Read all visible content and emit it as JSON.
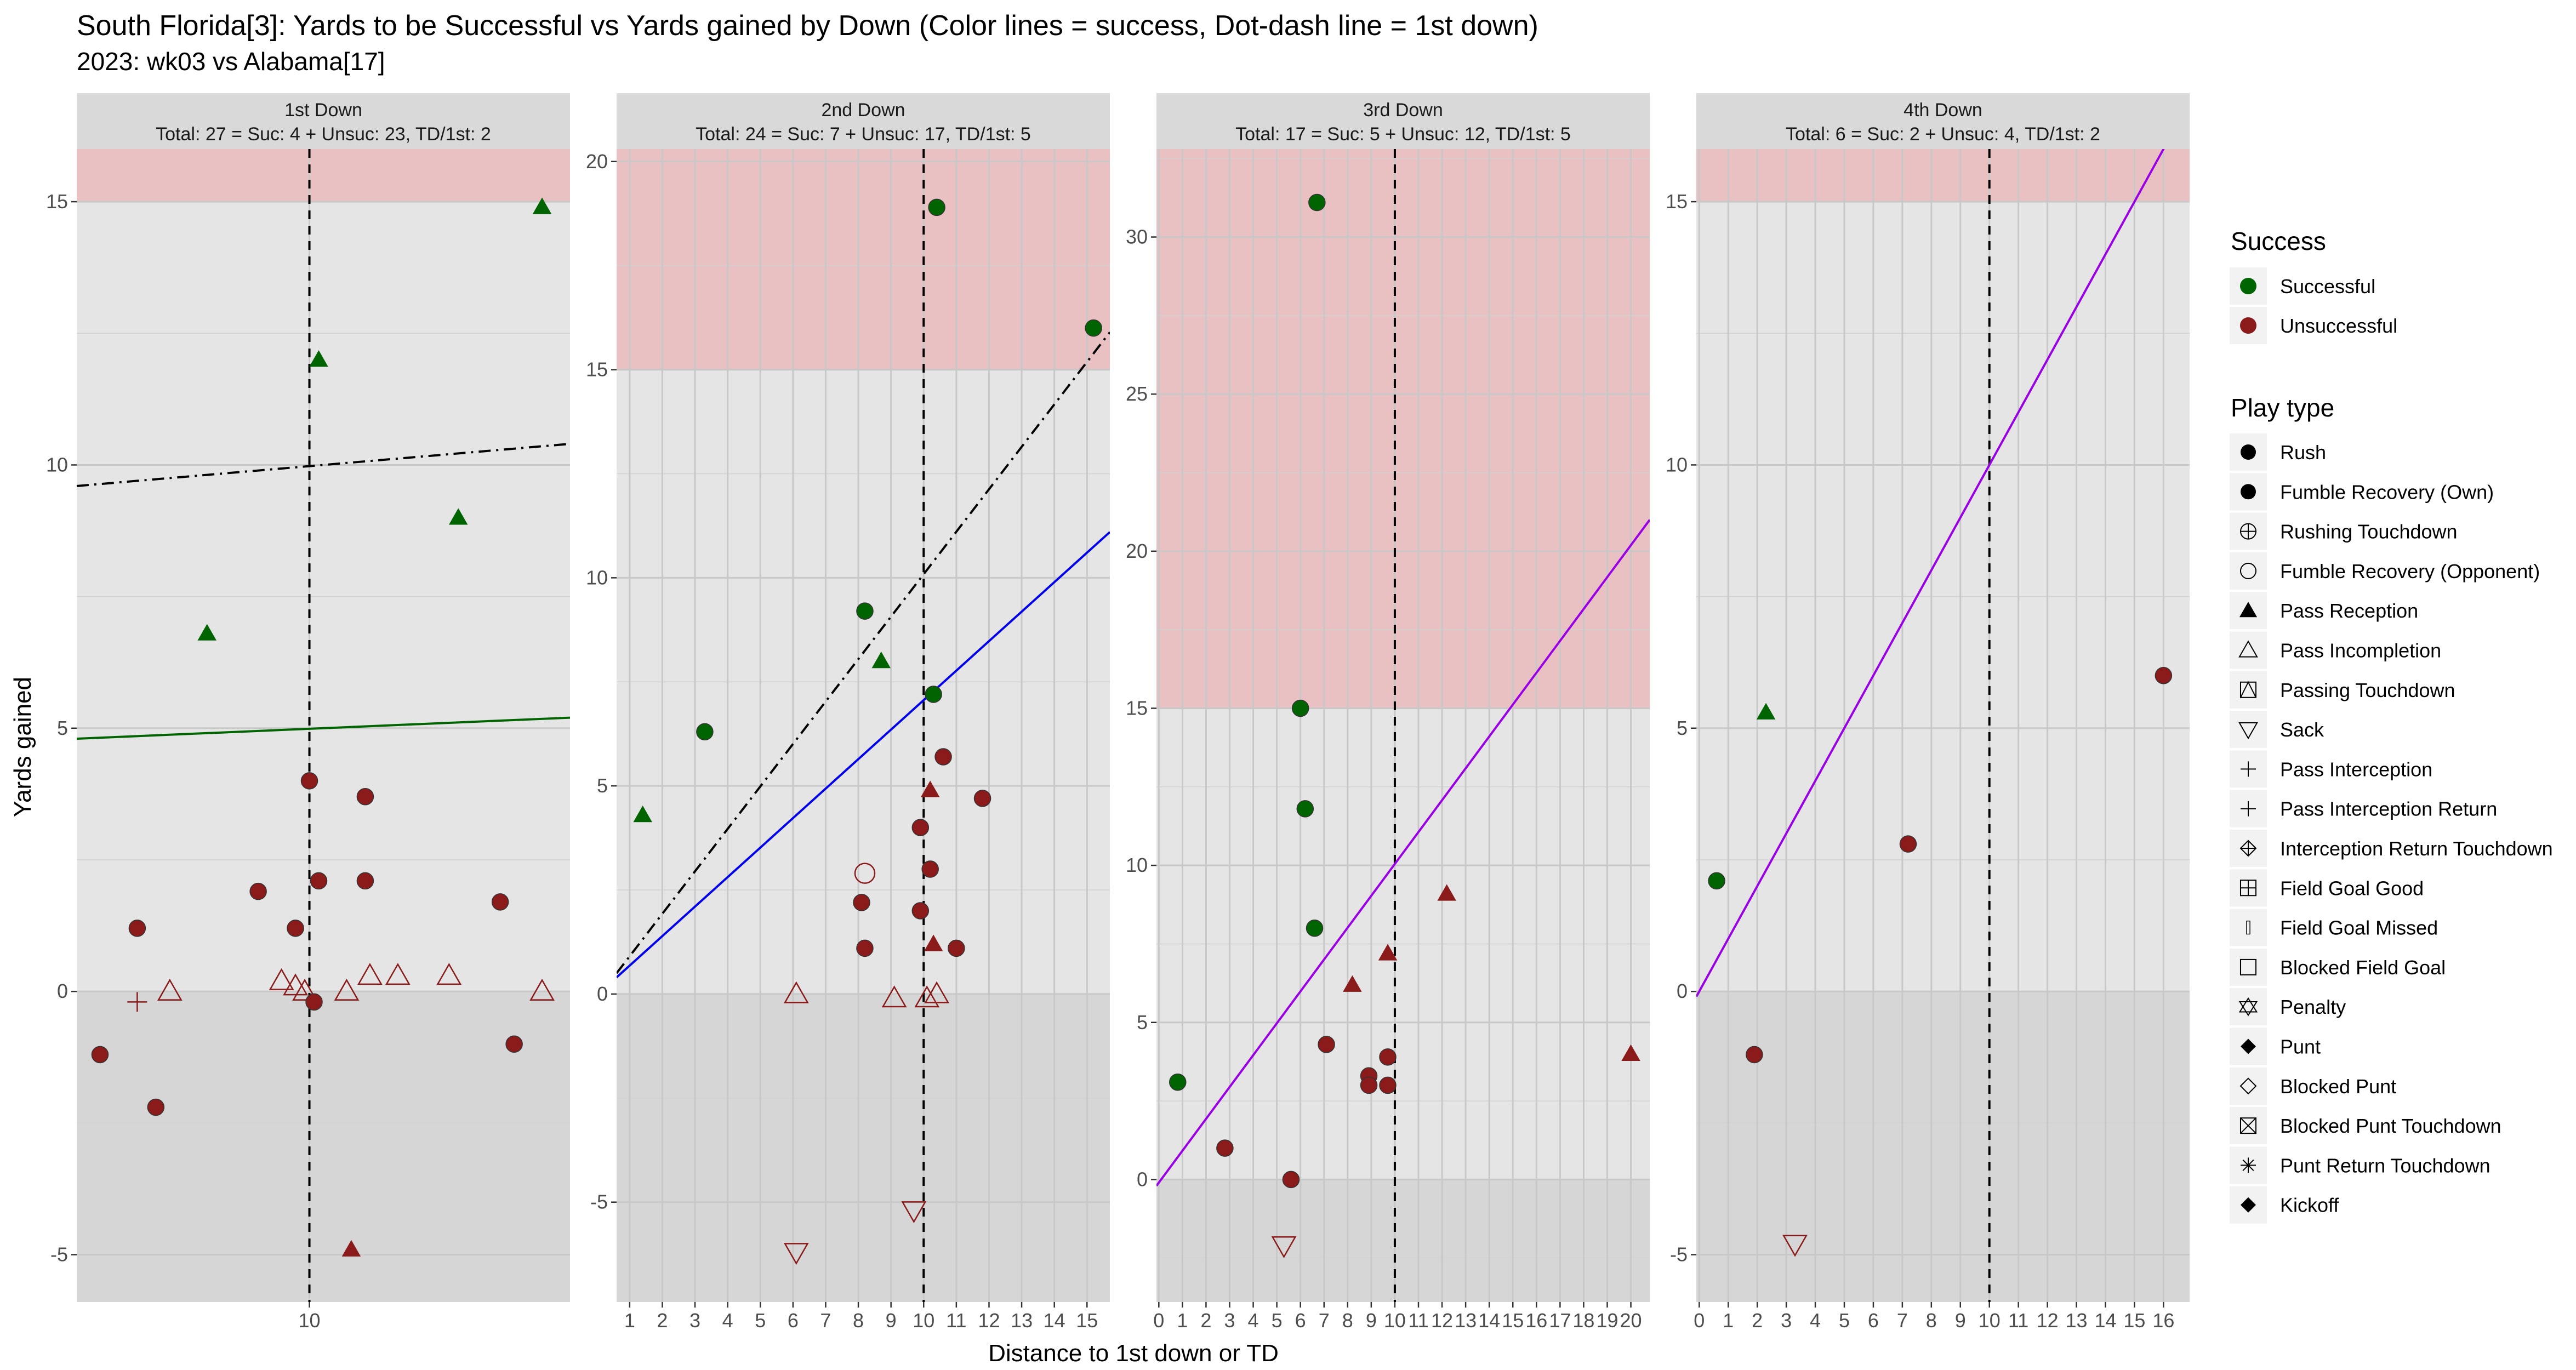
{
  "title": "South Florida[3]: Yards to be Successful vs Yards gained by Down  (Color lines = success, Dot-dash line = 1st down)",
  "subtitle": "2023: wk03 vs Alabama[17]",
  "xlabel": "Distance to 1st down or TD",
  "ylabel": "Yards gained",
  "colors": {
    "successful": "#006400",
    "unsuccessful": "#8B1A1A",
    "panel_bg": "#E5E5E5",
    "negative_band": "#D6D6D6",
    "big_play_band": "#E9C1C3",
    "strip_bg": "#D9D9D9",
    "grid": "#FFFFFF"
  },
  "legend": {
    "success_title": "Success",
    "success_items": [
      {
        "label": "Successful",
        "color": "#006400"
      },
      {
        "label": "Unsuccessful",
        "color": "#8B1A1A"
      }
    ],
    "play_title": "Play type",
    "play_items": [
      {
        "label": "Rush",
        "shape": "circle-filled"
      },
      {
        "label": "Fumble Recovery (Own)",
        "shape": "circle-filled"
      },
      {
        "label": "Rushing Touchdown",
        "shape": "circle-plus"
      },
      {
        "label": "Fumble Recovery (Opponent)",
        "shape": "circle-open"
      },
      {
        "label": "Pass Reception",
        "shape": "triangle-filled"
      },
      {
        "label": "Pass Incompletion",
        "shape": "triangle-open"
      },
      {
        "label": "Passing Touchdown",
        "shape": "square-triangle"
      },
      {
        "label": "Sack",
        "shape": "triangle-down-open"
      },
      {
        "label": "Pass Interception",
        "shape": "plus"
      },
      {
        "label": "Pass Interception Return",
        "shape": "plus"
      },
      {
        "label": "Interception Return Touchdown",
        "shape": "diamond-plus"
      },
      {
        "label": "Field Goal Good",
        "shape": "square-plus"
      },
      {
        "label": "Field Goal Missed",
        "shape": "bar-open"
      },
      {
        "label": "Blocked Field Goal",
        "shape": "square-open"
      },
      {
        "label": "Penalty",
        "shape": "star-triangles"
      },
      {
        "label": "Punt",
        "shape": "diamond-filled"
      },
      {
        "label": "Blocked Punt",
        "shape": "diamond-open"
      },
      {
        "label": "Blocked Punt Touchdown",
        "shape": "square-x"
      },
      {
        "label": "Punt Return Touchdown",
        "shape": "asterisk"
      },
      {
        "label": "Kickoff",
        "shape": "diamond-filled"
      }
    ]
  },
  "chart_data": [
    {
      "type": "scatter",
      "strip_title": "1st Down",
      "strip_subtitle": "Total: 27 = Suc: 4 + Unsuc: 23, TD/1st: 2",
      "xlim": [
        5,
        15.6
      ],
      "ylim": [
        -5.9,
        16
      ],
      "x_ticks": [
        10
      ],
      "y_ticks": [
        -5,
        0,
        5,
        10,
        15
      ],
      "big_play_threshold": 15,
      "first_down_line_x": 10,
      "success_line": {
        "color": "#006400",
        "from": [
          5,
          4.8
        ],
        "to": [
          15.6,
          5.2
        ]
      },
      "dotdash_line": {
        "from": [
          5,
          9.6
        ],
        "to": [
          15.6,
          10.4
        ]
      },
      "points": [
        {
          "x": 5.5,
          "y": -1.2,
          "play": "Rush",
          "success": false
        },
        {
          "x": 6.3,
          "y": 1.2,
          "play": "Rush",
          "success": false
        },
        {
          "x": 6.3,
          "y": -0.2,
          "play": "Pass Interception",
          "success": false
        },
        {
          "x": 6.7,
          "y": -2.2,
          "play": "Rush",
          "success": false
        },
        {
          "x": 7.0,
          "y": 0.0,
          "play": "Pass Incompletion",
          "success": false
        },
        {
          "x": 7.8,
          "y": 6.8,
          "play": "Pass Reception",
          "success": true
        },
        {
          "x": 8.9,
          "y": 1.9,
          "play": "Rush",
          "success": false
        },
        {
          "x": 9.4,
          "y": 0.2,
          "play": "Pass Incompletion",
          "success": false
        },
        {
          "x": 9.7,
          "y": 1.2,
          "play": "Rush",
          "success": false
        },
        {
          "x": 9.7,
          "y": 0.1,
          "play": "Pass Incompletion",
          "success": false
        },
        {
          "x": 9.9,
          "y": 0.0,
          "play": "Pass Incompletion",
          "success": false
        },
        {
          "x": 10.0,
          "y": 4.0,
          "play": "Rush",
          "success": false
        },
        {
          "x": 10.1,
          "y": -0.2,
          "play": "Rush",
          "success": false
        },
        {
          "x": 10.2,
          "y": 2.1,
          "play": "Rush",
          "success": false
        },
        {
          "x": 10.2,
          "y": 12.0,
          "play": "Pass Reception",
          "success": true
        },
        {
          "x": 10.8,
          "y": 0.0,
          "play": "Pass Incompletion",
          "success": false
        },
        {
          "x": 10.9,
          "y": -4.9,
          "play": "Pass Reception",
          "success": false
        },
        {
          "x": 11.2,
          "y": 3.7,
          "play": "Rush",
          "success": false
        },
        {
          "x": 11.2,
          "y": 2.1,
          "play": "Rush",
          "success": false
        },
        {
          "x": 11.3,
          "y": 0.3,
          "play": "Pass Incompletion",
          "success": false
        },
        {
          "x": 11.9,
          "y": 0.3,
          "play": "Pass Incompletion",
          "success": false
        },
        {
          "x": 13.0,
          "y": 0.3,
          "play": "Pass Incompletion",
          "success": false
        },
        {
          "x": 13.2,
          "y": 9.0,
          "play": "Pass Reception",
          "success": true
        },
        {
          "x": 14.1,
          "y": 1.7,
          "play": "Rush",
          "success": false
        },
        {
          "x": 14.4,
          "y": -1.0,
          "play": "Rush",
          "success": false
        },
        {
          "x": 15.0,
          "y": 0.0,
          "play": "Pass Incompletion",
          "success": false
        },
        {
          "x": 15.0,
          "y": 14.9,
          "play": "Pass Reception",
          "success": true
        }
      ]
    },
    {
      "type": "scatter",
      "strip_title": "2nd Down",
      "strip_subtitle": "Total: 24 = Suc: 7 + Unsuc: 17, TD/1st: 5",
      "xlim": [
        0.6,
        15.7
      ],
      "ylim": [
        -7.4,
        20.3
      ],
      "x_ticks": [
        1,
        2,
        3,
        4,
        5,
        6,
        7,
        8,
        9,
        10,
        11,
        12,
        13,
        14,
        15
      ],
      "y_ticks": [
        -5,
        0,
        5,
        10,
        15,
        20
      ],
      "big_play_threshold": 15,
      "first_down_line_x": 10,
      "success_line": {
        "color": "#0000EE",
        "from": [
          0.6,
          0.4
        ],
        "to": [
          15.7,
          11.1
        ]
      },
      "dotdash_line": {
        "from": [
          0.6,
          0.5
        ],
        "to": [
          15.7,
          15.9
        ]
      },
      "points": [
        {
          "x": 1.4,
          "y": 4.3,
          "play": "Pass Reception",
          "success": true
        },
        {
          "x": 3.3,
          "y": 6.3,
          "play": "Rush",
          "success": true
        },
        {
          "x": 6.1,
          "y": 0.0,
          "play": "Pass Incompletion",
          "success": false
        },
        {
          "x": 6.1,
          "y": -6.2,
          "play": "Sack",
          "success": false
        },
        {
          "x": 8.1,
          "y": 2.2,
          "play": "Rush",
          "success": false
        },
        {
          "x": 8.2,
          "y": 1.1,
          "play": "Rush",
          "success": false
        },
        {
          "x": 8.2,
          "y": 2.9,
          "play": "Fumble Recovery (Opponent)",
          "success": false
        },
        {
          "x": 8.2,
          "y": 9.2,
          "play": "Rush",
          "success": true
        },
        {
          "x": 8.7,
          "y": 8.0,
          "play": "Pass Reception",
          "success": true
        },
        {
          "x": 9.1,
          "y": -0.1,
          "play": "Pass Incompletion",
          "success": false
        },
        {
          "x": 9.7,
          "y": -5.2,
          "play": "Sack",
          "success": false
        },
        {
          "x": 9.9,
          "y": 2.0,
          "play": "Rush",
          "success": false
        },
        {
          "x": 9.9,
          "y": 4.0,
          "play": "Rush",
          "success": false
        },
        {
          "x": 10.1,
          "y": -0.1,
          "play": "Pass Incompletion",
          "success": false
        },
        {
          "x": 10.2,
          "y": 3.0,
          "play": "Rush",
          "success": false
        },
        {
          "x": 10.2,
          "y": 4.9,
          "play": "Pass Reception",
          "success": false
        },
        {
          "x": 10.3,
          "y": 1.2,
          "play": "Pass Reception",
          "success": false
        },
        {
          "x": 10.3,
          "y": 7.2,
          "play": "Rush",
          "success": true
        },
        {
          "x": 10.4,
          "y": 0.0,
          "play": "Pass Incompletion",
          "success": false
        },
        {
          "x": 10.4,
          "y": 18.9,
          "play": "Rush",
          "success": true
        },
        {
          "x": 10.6,
          "y": 5.7,
          "play": "Rush",
          "success": false
        },
        {
          "x": 11.0,
          "y": 1.1,
          "play": "Rush",
          "success": false
        },
        {
          "x": 11.8,
          "y": 4.7,
          "play": "Rush",
          "success": false
        },
        {
          "x": 15.2,
          "y": 16.0,
          "play": "Rush",
          "success": true
        }
      ]
    },
    {
      "type": "scatter",
      "strip_title": "3rd Down",
      "strip_subtitle": "Total: 17 = Suc: 5 + Unsuc: 12, TD/1st: 5",
      "xlim": [
        -0.1,
        20.8
      ],
      "ylim": [
        -3.9,
        32.8
      ],
      "x_ticks": [
        0,
        1,
        2,
        3,
        4,
        5,
        6,
        7,
        8,
        9,
        10,
        11,
        12,
        13,
        14,
        15,
        16,
        17,
        18,
        19,
        20
      ],
      "y_ticks": [
        0,
        5,
        10,
        15,
        20,
        25,
        30
      ],
      "big_play_threshold": 15,
      "first_down_line_x": 10,
      "success_line": {
        "color": "#9A00E6",
        "from": [
          -0.1,
          -0.2
        ],
        "to": [
          20.8,
          21.0
        ]
      },
      "dotdash_line": null,
      "points": [
        {
          "x": 0.8,
          "y": 3.1,
          "play": "Rush",
          "success": true
        },
        {
          "x": 2.8,
          "y": 1.0,
          "play": "Rush",
          "success": false
        },
        {
          "x": 5.3,
          "y": -2.1,
          "play": "Sack",
          "success": false
        },
        {
          "x": 5.6,
          "y": 0.0,
          "play": "Rush",
          "success": false
        },
        {
          "x": 6.0,
          "y": 15.0,
          "play": "Rush",
          "success": true
        },
        {
          "x": 6.2,
          "y": 11.8,
          "play": "Rush",
          "success": true
        },
        {
          "x": 6.6,
          "y": 8.0,
          "play": "Rush",
          "success": true
        },
        {
          "x": 6.7,
          "y": 31.1,
          "play": "Rush",
          "success": true
        },
        {
          "x": 7.1,
          "y": 4.3,
          "play": "Rush",
          "success": false
        },
        {
          "x": 8.2,
          "y": 6.2,
          "play": "Pass Reception",
          "success": false
        },
        {
          "x": 8.9,
          "y": 3.3,
          "play": "Rush",
          "success": false
        },
        {
          "x": 8.9,
          "y": 3.0,
          "play": "Rush",
          "success": false
        },
        {
          "x": 9.7,
          "y": 3.9,
          "play": "Rush",
          "success": false
        },
        {
          "x": 9.7,
          "y": 7.2,
          "play": "Pass Reception",
          "success": false
        },
        {
          "x": 9.7,
          "y": 3.0,
          "play": "Rush",
          "success": false
        },
        {
          "x": 12.2,
          "y": 9.1,
          "play": "Pass Reception",
          "success": false
        },
        {
          "x": 20.0,
          "y": 4.0,
          "play": "Pass Reception",
          "success": false
        }
      ]
    },
    {
      "type": "scatter",
      "strip_title": "4th Down",
      "strip_subtitle": "Total: 6 = Suc: 2 + Unsuc: 4, TD/1st: 2",
      "xlim": [
        -0.1,
        16.9
      ],
      "ylim": [
        -5.9,
        16
      ],
      "x_ticks": [
        0,
        1,
        2,
        3,
        4,
        5,
        6,
        7,
        8,
        9,
        10,
        11,
        12,
        13,
        14,
        15,
        16
      ],
      "y_ticks": [
        -5,
        0,
        5,
        10,
        15
      ],
      "big_play_threshold": 15,
      "first_down_line_x": 10,
      "success_line": {
        "color": "#9A00E6",
        "from": [
          -0.1,
          -0.1
        ],
        "to": [
          16.9,
          16.9
        ]
      },
      "dotdash_line": null,
      "points": [
        {
          "x": 0.6,
          "y": 2.1,
          "play": "Rush",
          "success": true
        },
        {
          "x": 1.9,
          "y": -1.2,
          "play": "Rush",
          "success": false
        },
        {
          "x": 2.3,
          "y": 5.3,
          "play": "Pass Reception",
          "success": true
        },
        {
          "x": 3.3,
          "y": -4.8,
          "play": "Sack",
          "success": false
        },
        {
          "x": 7.2,
          "y": 2.8,
          "play": "Rush",
          "success": false
        },
        {
          "x": 16.0,
          "y": 6.0,
          "play": "Rush",
          "success": false
        }
      ]
    }
  ]
}
